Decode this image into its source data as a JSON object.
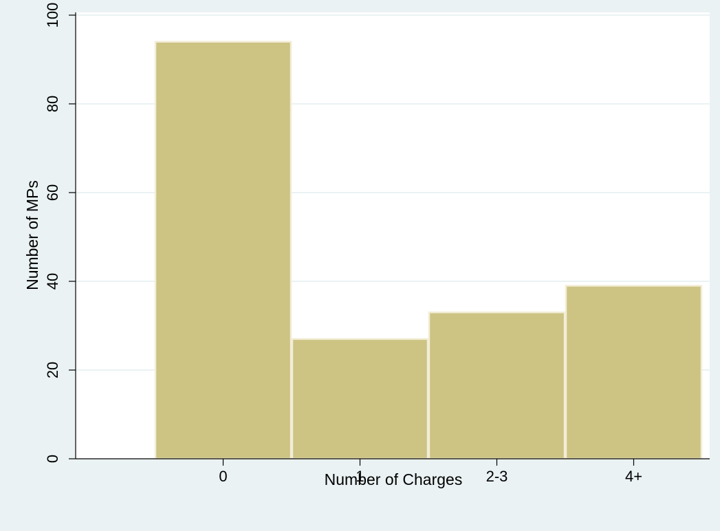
{
  "colors": {
    "background": "#eaf2f3",
    "plot_background": "#ffffff",
    "bar_fill": "#cdc383",
    "bar_stroke": "#f2edd6",
    "gridline": "#eaf2f3",
    "axis": "#000000"
  },
  "chart_data": {
    "type": "bar",
    "categories": [
      "0",
      "1",
      "2-3",
      "4+"
    ],
    "values": [
      94,
      27,
      33,
      39
    ],
    "xlabel": "Number of Charges",
    "ylabel": "Number of MPs",
    "ylim": [
      0,
      100
    ],
    "yticks": [
      0,
      20,
      40,
      60,
      80,
      100
    ],
    "grid": true,
    "legend": "none"
  }
}
